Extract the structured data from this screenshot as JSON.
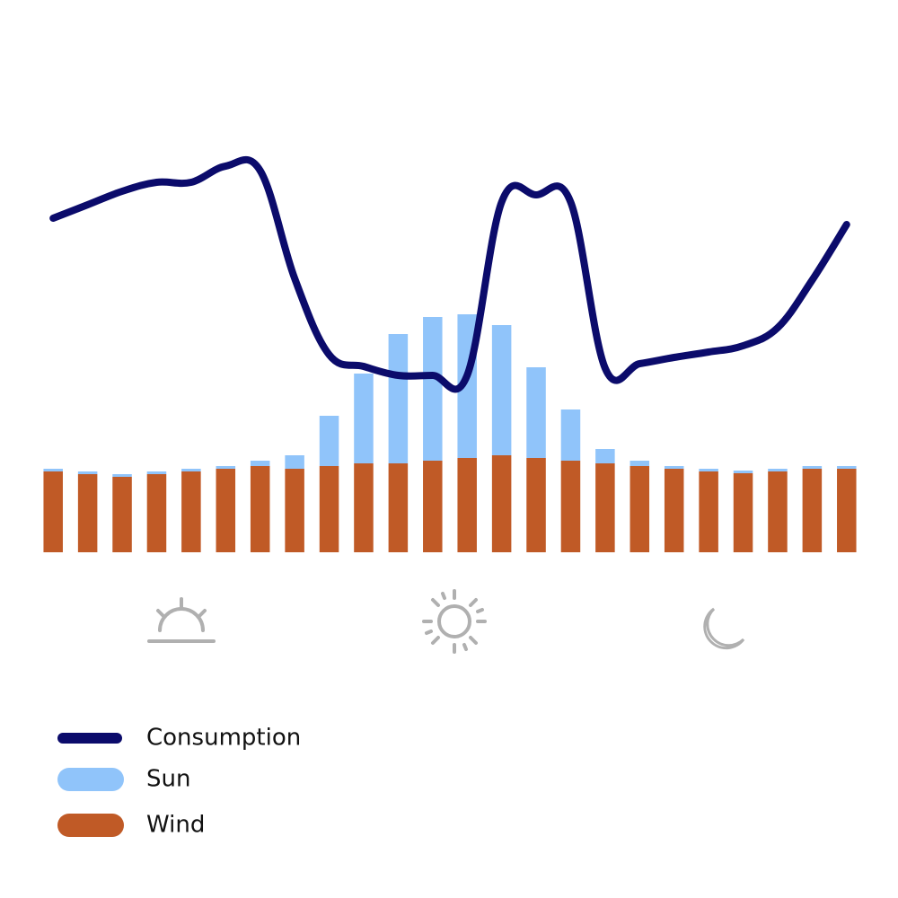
{
  "chart_data": {
    "type": "bar",
    "stacked": true,
    "categories": [
      null,
      null,
      null,
      null,
      null,
      null,
      null,
      null,
      null,
      null,
      null,
      null,
      null,
      null,
      null,
      null,
      null,
      null,
      null,
      null,
      null,
      null,
      null,
      null
    ],
    "ylim": [
      0,
      100
    ],
    "series": [
      {
        "name": "Consumption",
        "type": "line",
        "color": "#0b0b6b",
        "values": [
          74.4,
          77.4,
          80.4,
          82.4,
          82.4,
          86,
          85,
          61,
          44,
          41.4,
          39.4,
          39.4,
          39.4,
          78,
          79.6,
          78,
          41,
          42,
          43.4,
          44.6,
          46,
          50,
          60.6,
          73
        ]
      },
      {
        "name": "Sun",
        "type": "bar",
        "color": "#90c4fa",
        "values": [
          0.6,
          0.6,
          0.6,
          0.6,
          0.6,
          0.6,
          1.2,
          3,
          11.2,
          20,
          28.8,
          32,
          32,
          29,
          20.2,
          11.4,
          3.2,
          1.2,
          0.6,
          0.6,
          0.6,
          0.6,
          0.6,
          0.6
        ]
      },
      {
        "name": "Wind",
        "type": "bar",
        "color": "#c05a26",
        "values": [
          18,
          17.4,
          16.8,
          17.4,
          18,
          18.6,
          19.2,
          18.6,
          19.2,
          19.8,
          19.8,
          20.4,
          21,
          21.6,
          21,
          20.4,
          19.8,
          19.2,
          18.6,
          18,
          17.6,
          18,
          18.6,
          18.6
        ]
      }
    ]
  }
}
